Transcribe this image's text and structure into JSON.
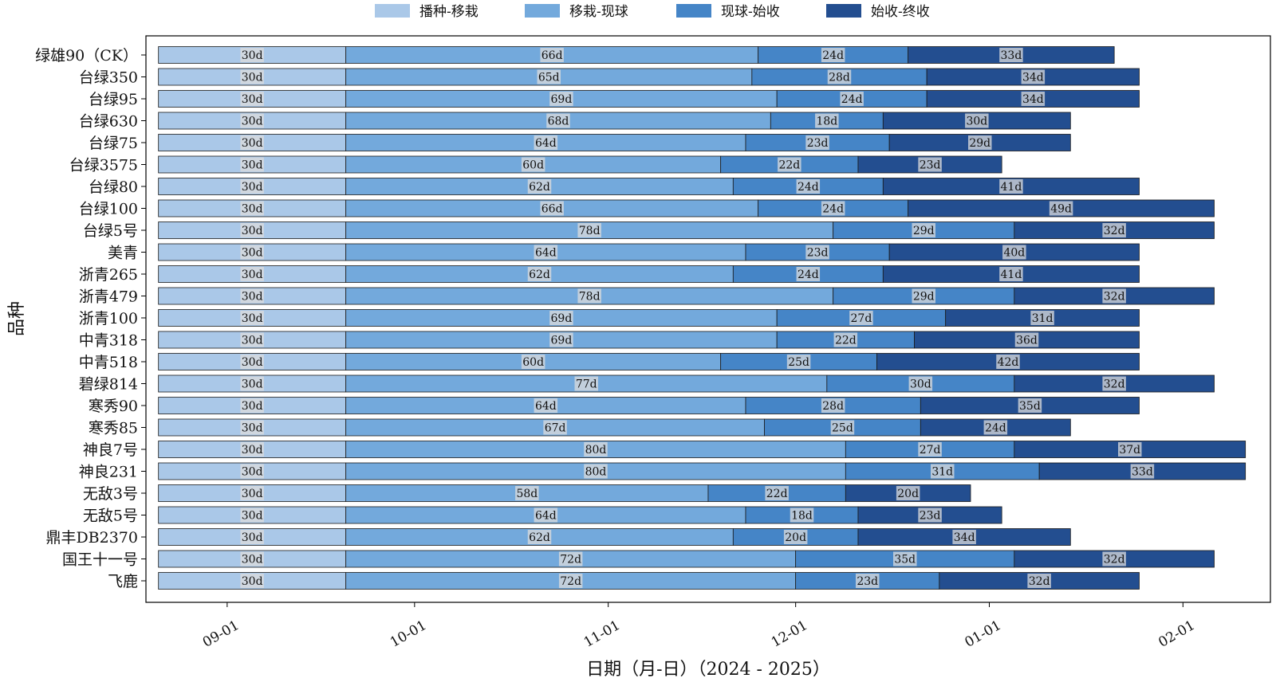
{
  "chart_data": {
    "type": "bar",
    "orientation": "horizontal-stacked-gantt",
    "title": "",
    "xlabel": "日期（月-日）（2024 - 2025）",
    "ylabel": "品种",
    "legend_position": "top",
    "start_date": "2024-08-21",
    "x_ticks": [
      "09-01",
      "10-01",
      "11-01",
      "12-01",
      "01-01",
      "02-01"
    ],
    "x_tick_days": [
      11,
      41,
      72,
      102,
      133,
      164
    ],
    "xlim_days": [
      -2,
      178
    ],
    "stages": [
      "播种-移栽",
      "移栽-现球",
      "现球-始收",
      "始收-终收"
    ],
    "colors": [
      "#aac8e8",
      "#73a9dc",
      "#4585c7",
      "#234e90"
    ],
    "categories": [
      "绿雄90（CK）",
      "台绿350",
      "台绿95",
      "台绿630",
      "台绿75",
      "台绿3575",
      "台绿80",
      "台绿100",
      "台绿5号",
      "美青",
      "浙青265",
      "浙青479",
      "浙青100",
      "中青318",
      "中青518",
      "碧绿814",
      "寒秀90",
      "寒秀85",
      "神良7号",
      "神良231",
      "无敌3号",
      "无敌5号",
      "鼎丰DB2370",
      "国王十一号",
      "飞鹿"
    ],
    "series": [
      {
        "name": "播种-移栽",
        "values": [
          30,
          30,
          30,
          30,
          30,
          30,
          30,
          30,
          30,
          30,
          30,
          30,
          30,
          30,
          30,
          30,
          30,
          30,
          30,
          30,
          30,
          30,
          30,
          30,
          30
        ]
      },
      {
        "name": "移栽-现球",
        "values": [
          66,
          65,
          69,
          68,
          64,
          60,
          62,
          66,
          78,
          64,
          62,
          78,
          69,
          69,
          60,
          77,
          64,
          67,
          80,
          80,
          58,
          64,
          62,
          72,
          72
        ]
      },
      {
        "name": "现球-始收",
        "values": [
          24,
          28,
          24,
          18,
          23,
          22,
          24,
          24,
          29,
          23,
          24,
          29,
          27,
          22,
          25,
          30,
          28,
          25,
          27,
          31,
          22,
          18,
          20,
          35,
          23
        ]
      },
      {
        "name": "始收-终收",
        "values": [
          33,
          34,
          34,
          30,
          29,
          23,
          41,
          49,
          32,
          40,
          41,
          32,
          31,
          36,
          42,
          32,
          35,
          24,
          37,
          33,
          20,
          23,
          34,
          32,
          32
        ]
      }
    ],
    "label_suffix": "d"
  }
}
